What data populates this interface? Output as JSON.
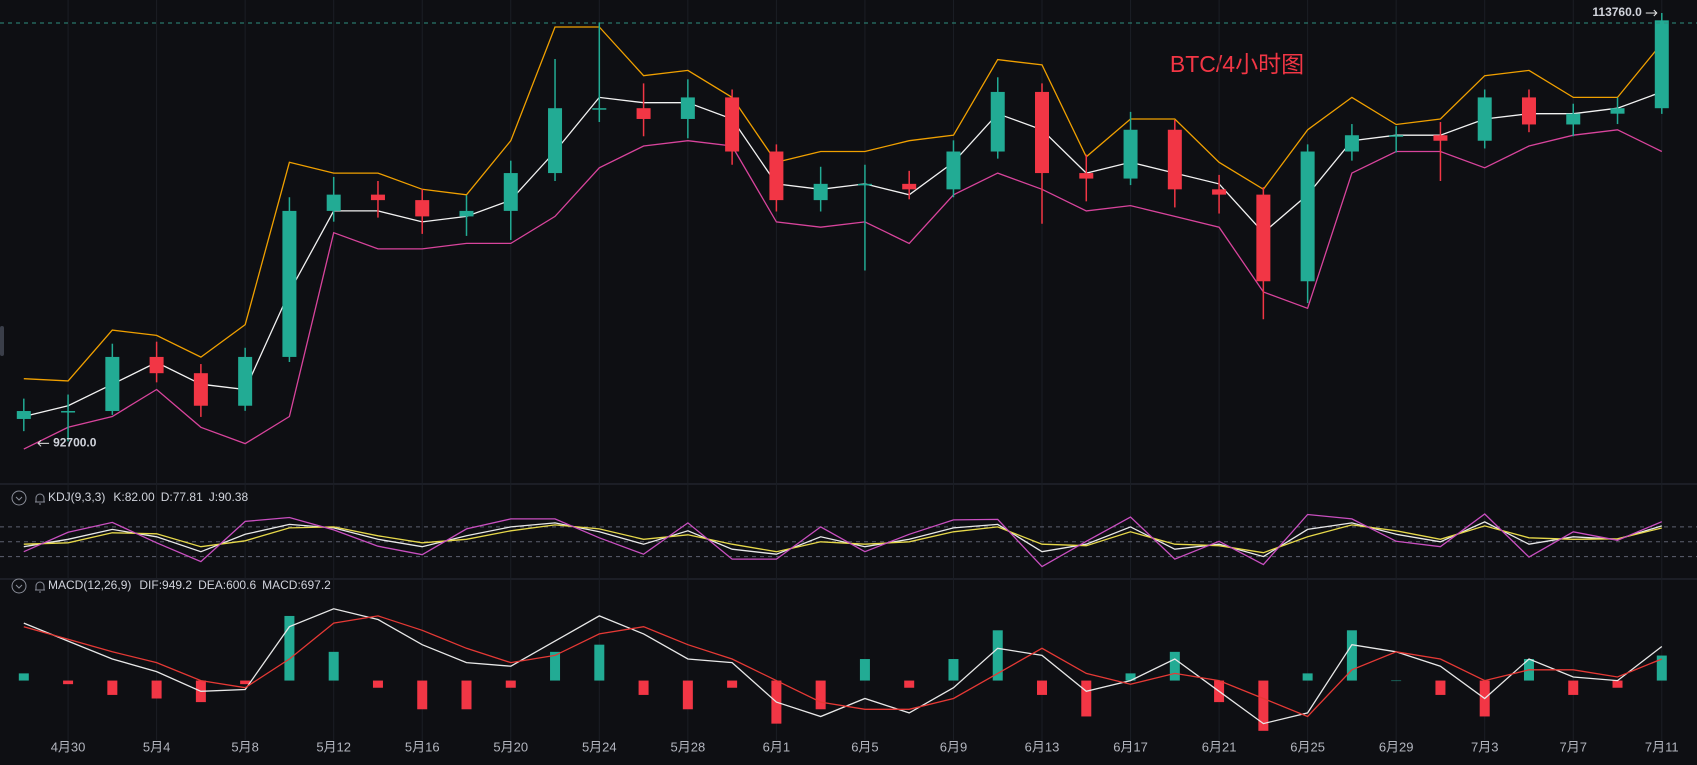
{
  "chart_data": [
    {
      "type": "candlestick",
      "title": "BTC/4小时图",
      "categories": [
        null,
        "4月30",
        null,
        "5月4",
        null,
        "5月8",
        null,
        "5月12",
        null,
        "5月16",
        null,
        "5月20",
        null,
        "5月24",
        null,
        "5月28",
        null,
        "6月1",
        null,
        "6月5",
        null,
        "6月9",
        null,
        "6月13",
        null,
        "6月17",
        null,
        "6月21",
        null,
        "6月25",
        null,
        "6月29",
        null,
        "7月3",
        null,
        "7月7",
        null,
        "7月11"
      ],
      "open": [
        93800,
        94190,
        94190,
        96850,
        96050,
        94450,
        96850,
        104030,
        104830,
        104560,
        103760,
        104030,
        105890,
        109080,
        109080,
        108550,
        109610,
        106950,
        104560,
        105360,
        105360,
        105090,
        106950,
        109880,
        105890,
        105620,
        108020,
        105090,
        104830,
        100570,
        106950,
        107750,
        107750,
        107480,
        109610,
        108280,
        108810,
        109080
      ],
      "high": [
        94800,
        95000,
        97500,
        97600,
        96500,
        97300,
        104700,
        105700,
        105500,
        105100,
        104800,
        106500,
        111500,
        113300,
        110300,
        110500,
        110000,
        107300,
        106200,
        106300,
        106000,
        107500,
        110600,
        110300,
        106800,
        108900,
        108500,
        105800,
        105200,
        107300,
        108300,
        108200,
        108400,
        110000,
        110000,
        109300,
        109600,
        113760
      ],
      "low": [
        93200,
        92700,
        94000,
        95600,
        93900,
        94200,
        96600,
        103500,
        103700,
        102900,
        102800,
        102600,
        105500,
        108400,
        107700,
        107600,
        106300,
        104000,
        104000,
        101100,
        104600,
        104700,
        106600,
        103400,
        104500,
        105300,
        104200,
        103900,
        98700,
        99500,
        106500,
        106900,
        105500,
        107100,
        107900,
        107700,
        108300,
        108800
      ],
      "close": [
        94190,
        94190,
        96850,
        96050,
        94450,
        96850,
        104030,
        104830,
        104560,
        103760,
        104030,
        105890,
        109080,
        109080,
        108550,
        109610,
        106950,
        104560,
        105360,
        105360,
        105090,
        106950,
        109880,
        105890,
        105620,
        108020,
        105090,
        104830,
        100570,
        106950,
        107750,
        107750,
        107480,
        109610,
        108280,
        108810,
        109080,
        113400
      ],
      "up_color": "#22ab94",
      "down_color": "#f23645",
      "ylim": [
        90700,
        114400
      ],
      "max_marker": {
        "value": 113760,
        "label": "113760.0"
      },
      "min_marker": {
        "value": 92700,
        "label": "92700.0"
      },
      "series": [
        {
          "color": "#f0a000",
          "values": [
            95780,
            95670,
            98170,
            97910,
            96840,
            98440,
            106420,
            105890,
            105890,
            105090,
            104820,
            107480,
            113070,
            113070,
            110680,
            110940,
            109610,
            106420,
            106950,
            106950,
            107480,
            107750,
            111470,
            111210,
            106690,
            108550,
            108550,
            106420,
            105090,
            108020,
            109610,
            108280,
            108550,
            110680,
            110940,
            109610,
            109610,
            112270
          ]
        },
        {
          "color": "#f2f2f2",
          "values": [
            93920,
            94450,
            95510,
            96580,
            95510,
            95250,
            100040,
            104030,
            104030,
            103490,
            103760,
            104560,
            106950,
            109610,
            109350,
            109350,
            108550,
            105360,
            105090,
            105360,
            104820,
            106420,
            108810,
            108020,
            105890,
            106420,
            105890,
            105360,
            102960,
            104820,
            107480,
            107750,
            107750,
            108550,
            108810,
            108810,
            109080,
            109880
          ]
        },
        {
          "color": "#d8449c",
          "values": [
            92320,
            93390,
            93920,
            95250,
            93390,
            92590,
            93920,
            102960,
            102160,
            102160,
            102430,
            102430,
            103760,
            106150,
            107220,
            107480,
            107220,
            103490,
            103230,
            103490,
            102430,
            104820,
            105890,
            105090,
            104030,
            104290,
            103760,
            103230,
            100040,
            99240,
            105890,
            106950,
            106950,
            106150,
            107220,
            107750,
            108020,
            106950
          ]
        }
      ]
    },
    {
      "type": "line",
      "title": "KDJ(9,3,3)",
      "ylim": [
        -15,
        110
      ],
      "levels": [
        20,
        50,
        80
      ],
      "series": [
        {
          "legend": "K:82.00",
          "color": "#e8e8e8",
          "values": [
            40,
            55,
            75,
            60,
            30,
            65,
            85,
            78,
            55,
            40,
            62,
            80,
            88,
            70,
            45,
            72,
            35,
            25,
            60,
            40,
            55,
            78,
            85,
            30,
            45,
            80,
            35,
            45,
            20,
            75,
            88,
            65,
            50,
            90,
            45,
            60,
            55,
            82
          ]
        },
        {
          "legend": "D:77.81",
          "color": "#e6d84a",
          "values": [
            45,
            48,
            68,
            66,
            40,
            52,
            78,
            80,
            62,
            48,
            55,
            72,
            84,
            76,
            55,
            64,
            45,
            30,
            50,
            45,
            50,
            70,
            80,
            45,
            42,
            70,
            45,
            42,
            28,
            60,
            84,
            72,
            55,
            82,
            58,
            55,
            56,
            77.81
          ]
        },
        {
          "legend": "J:90.38",
          "color": "#c94fc0",
          "values": [
            30,
            69,
            89,
            48,
            10,
            91,
            99,
            74,
            41,
            24,
            76,
            96,
            96,
            58,
            25,
            88,
            15,
            15,
            80,
            30,
            65,
            94,
            95,
            0,
            51,
            100,
            15,
            51,
            4,
            105,
            96,
            51,
            40,
            106,
            19,
            70,
            53,
            90.38
          ]
        }
      ]
    },
    {
      "type": "macd",
      "title": "MACD(12,26,9)",
      "ylim": [
        -1600,
        2300
      ],
      "series": [
        {
          "legend": "DIF:949.2",
          "color": "#e8e8e8",
          "values": [
            1600,
            1100,
            600,
            250,
            -300,
            -250,
            1500,
            2000,
            1700,
            1000,
            500,
            400,
            1100,
            1800,
            1300,
            600,
            500,
            -600,
            -1000,
            -500,
            -900,
            -200,
            900,
            700,
            -300,
            0,
            600,
            -300,
            -1200,
            -900,
            1000,
            800,
            400,
            -500,
            600,
            100,
            0,
            949.2
          ]
        },
        {
          "legend": "DEA:600.6",
          "color": "#e53935",
          "values": [
            1500,
            1150,
            800,
            500,
            0,
            -200,
            600,
            1600,
            1800,
            1400,
            900,
            500,
            700,
            1300,
            1500,
            1000,
            600,
            0,
            -600,
            -800,
            -800,
            -500,
            200,
            900,
            200,
            -100,
            200,
            0,
            -500,
            -1000,
            300,
            800,
            600,
            0,
            300,
            300,
            100,
            600.6
          ]
        }
      ],
      "histogram": {
        "legend": "MACD:697.2",
        "color": "#22ab94",
        "up_color": "#22ab94",
        "down_color": "#f23645",
        "values": [
          200,
          -100,
          -400,
          -500,
          -600,
          -100,
          1800,
          800,
          -200,
          -800,
          -800,
          -200,
          800,
          1000,
          -400,
          -800,
          -200,
          -1200,
          -800,
          600,
          -200,
          600,
          1400,
          -400,
          -1000,
          200,
          800,
          -600,
          -1400,
          200,
          1400,
          0,
          -400,
          -1000,
          600,
          -400,
          -200,
          697.2
        ]
      }
    }
  ]
}
